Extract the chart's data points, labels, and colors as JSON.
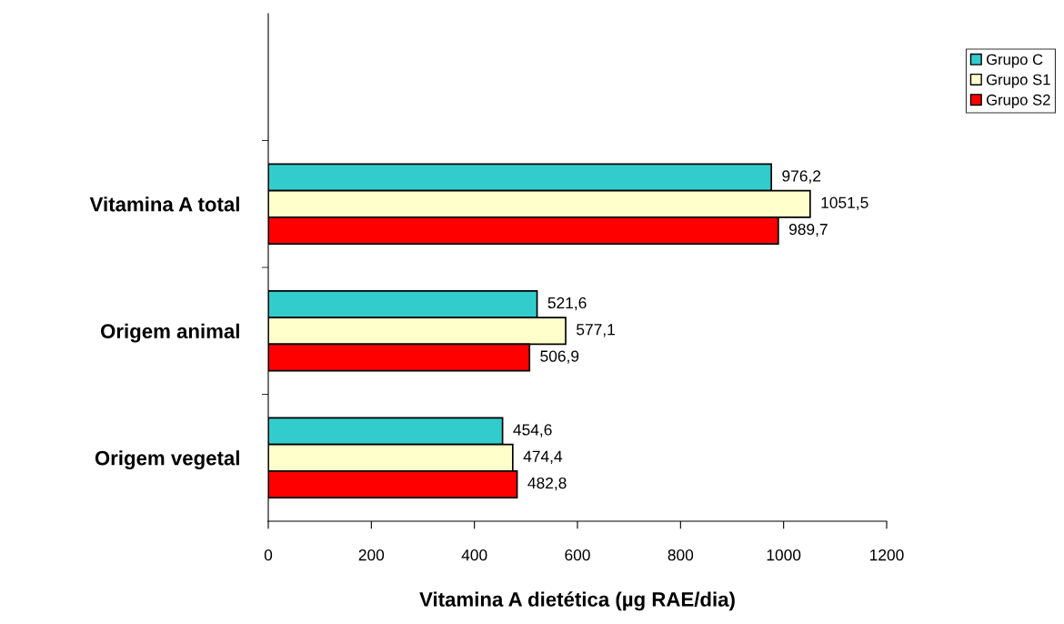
{
  "chart_data": {
    "type": "bar",
    "orientation": "horizontal",
    "xlabel": "Vitamina A dietética (µg RAE/dia)",
    "categories": [
      null,
      "Vitamina A total",
      "Origem animal",
      "Origem vegetal"
    ],
    "series": [
      {
        "name": "Grupo C",
        "color": "#33cccc",
        "values": [
          null,
          976.2,
          521.6,
          454.6
        ],
        "value_labels": [
          null,
          "976,2",
          "521,6",
          "454,6"
        ]
      },
      {
        "name": "Grupo S1",
        "color": "#ffffcc",
        "values": [
          null,
          1051.5,
          577.1,
          474.4
        ],
        "value_labels": [
          null,
          "1051,5",
          "577,1",
          "474,4"
        ]
      },
      {
        "name": "Grupo S2",
        "color": "#ff0000",
        "values": [
          null,
          989.7,
          506.9,
          482.8
        ],
        "value_labels": [
          null,
          "989,7",
          "506,9",
          "482,8"
        ]
      }
    ],
    "xlim": [
      0,
      1200
    ],
    "xticks": [
      0,
      200,
      400,
      600,
      800,
      1000,
      1200
    ],
    "grid": false,
    "legend": "top right"
  }
}
